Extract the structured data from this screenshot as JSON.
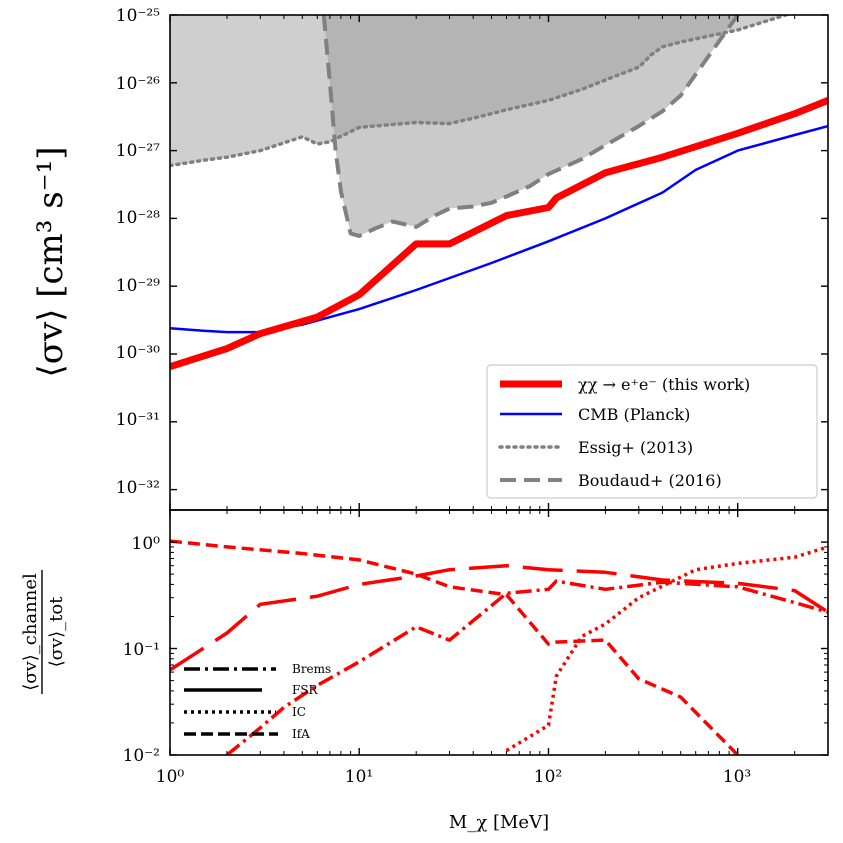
{
  "figure": {
    "xlabel": "M_χ [MeV]",
    "top_ylabel": "⟨σv⟩ [cm³ s⁻¹]",
    "bottom_ylabel_num": "⟨σv⟩_channel",
    "bottom_ylabel_den": "⟨σv⟩_tot",
    "x_ticks": [
      {
        "value": 1,
        "label": "10⁰"
      },
      {
        "value": 10,
        "label": "10¹"
      },
      {
        "value": 100,
        "label": "10²"
      },
      {
        "value": 1000,
        "label": "10³"
      }
    ],
    "top_y_ticks": [
      {
        "value": 1e-25,
        "label": "10⁻²⁵"
      },
      {
        "value": 1e-26,
        "label": "10⁻²⁶"
      },
      {
        "value": 1e-27,
        "label": "10⁻²⁷"
      },
      {
        "value": 1e-28,
        "label": "10⁻²⁸"
      },
      {
        "value": 1e-29,
        "label": "10⁻²⁹"
      },
      {
        "value": 1e-30,
        "label": "10⁻³⁰"
      },
      {
        "value": 1e-31,
        "label": "10⁻³¹"
      },
      {
        "value": 1e-32,
        "label": "10⁻³²"
      }
    ],
    "bottom_y_ticks": [
      {
        "value": 1,
        "label": "10⁰"
      },
      {
        "value": 0.1,
        "label": "10⁻¹"
      },
      {
        "value": 0.01,
        "label": "10⁻²"
      }
    ],
    "legend": [
      {
        "label": "χχ → e⁺e⁻ (this work)",
        "style": "thick-solid",
        "color": "#ff0000"
      },
      {
        "label": "CMB (Planck)",
        "style": "solid",
        "color": "#0000ff"
      },
      {
        "label": "Essig+ (2013)",
        "style": "dotted",
        "color": "#808080"
      },
      {
        "label": "Boudaud+ (2016)",
        "style": "dashed",
        "color": "#808080"
      }
    ],
    "inset_legend": [
      {
        "label": "Brems",
        "style": "dashdot"
      },
      {
        "label": "FSR",
        "style": "solid"
      },
      {
        "label": "IC",
        "style": "dotted"
      },
      {
        "label": "IfA",
        "style": "dashed"
      }
    ]
  },
  "chart_data": [
    {
      "type": "line",
      "xscale": "log",
      "yscale": "log",
      "xlim": [
        1,
        3000
      ],
      "ylim": [
        5e-33,
        1e-25
      ],
      "xlabel": "M_χ [MeV]",
      "ylabel": "⟨σv⟩ [cm³ s⁻¹]",
      "legend_position": "lower-right",
      "series": [
        {
          "name": "χχ → e⁺e⁻ (this work)",
          "color": "#ff0000",
          "x": [
            1,
            2,
            3,
            6,
            10,
            20,
            30,
            60,
            100,
            110,
            200,
            400,
            1000,
            2000,
            3000
          ],
          "y": [
            6.5e-31,
            1.2e-30,
            2e-30,
            3.5e-30,
            7.5e-30,
            4.2e-29,
            4.2e-29,
            1.1e-28,
            1.45e-28,
            2e-28,
            4.7e-28,
            8e-28,
            1.8e-27,
            3.5e-27,
            5.5e-27
          ]
        },
        {
          "name": "CMB (Planck)",
          "color": "#0000ff",
          "x": [
            1,
            1.5,
            2,
            3,
            5,
            10,
            20,
            50,
            100,
            200,
            400,
            600,
            1000,
            2000,
            3000
          ],
          "y": [
            2.4e-30,
            2.2e-30,
            2.1e-30,
            2.1e-30,
            2.7e-30,
            4.6e-30,
            8.8e-30,
            2.2e-29,
            4.6e-29,
            1e-28,
            2.4e-28,
            5.2e-28,
            1e-27,
            1.7e-27,
            2.3e-27
          ]
        },
        {
          "name": "Essig+ (2013)",
          "color": "#808080",
          "x": [
            1,
            1.5,
            2,
            3,
            4,
            5,
            6,
            7,
            10,
            20,
            30,
            40,
            50,
            60,
            100,
            150,
            200,
            300,
            350,
            400,
            500,
            1000,
            2000,
            3000
          ],
          "y": [
            6e-28,
            7.2e-28,
            8e-28,
            1e-27,
            1.3e-27,
            1.6e-27,
            1.25e-27,
            1.35e-27,
            2.2e-27,
            2.6e-27,
            2.5e-27,
            3e-27,
            3.5e-27,
            4e-27,
            5.5e-27,
            8e-27,
            1.1e-26,
            1.7e-26,
            2.6e-26,
            3.4e-26,
            4e-26,
            6e-26,
            1.1e-25,
            1.5e-25
          ]
        },
        {
          "name": "Boudaud+ (2016)",
          "color": "#808080",
          "x": [
            6.5,
            7,
            7.5,
            8,
            9,
            10,
            12,
            15,
            20,
            25,
            30,
            40,
            50,
            60,
            80,
            100,
            150,
            200,
            300,
            400,
            500,
            1000
          ],
          "y": [
            1e-25,
            1e-26,
            1e-27,
            2.5e-28,
            6e-29,
            5.5e-29,
            7e-29,
            9e-29,
            7.5e-29,
            1.1e-28,
            1.4e-28,
            1.5e-28,
            1.7e-28,
            2.1e-28,
            3e-28,
            4.5e-28,
            7.5e-28,
            1.2e-27,
            2.3e-27,
            3.8e-27,
            6.5e-27,
            1e-25
          ]
        }
      ]
    },
    {
      "type": "line",
      "xscale": "log",
      "yscale": "log",
      "xlim": [
        1,
        3000
      ],
      "ylim": [
        0.01,
        2
      ],
      "xlabel": "M_χ [MeV]",
      "ylabel": "⟨σv⟩_channel / ⟨σv⟩_tot",
      "legend_position": "lower-left",
      "series": [
        {
          "name": "Brems",
          "color": "#ff0000",
          "x": [
            2,
            3,
            4,
            6,
            10,
            20,
            30,
            60,
            100,
            110,
            200,
            400,
            1000,
            2000,
            3000
          ],
          "y": [
            0.01,
            0.018,
            0.028,
            0.045,
            0.075,
            0.16,
            0.12,
            0.33,
            0.36,
            0.43,
            0.36,
            0.42,
            0.38,
            0.27,
            0.22
          ]
        },
        {
          "name": "FSR",
          "color": "#ff0000",
          "x": [
            1,
            2,
            3,
            6,
            10,
            20,
            30,
            60,
            100,
            200,
            400,
            1000,
            2000,
            3000
          ],
          "y": [
            0.063,
            0.14,
            0.26,
            0.31,
            0.4,
            0.48,
            0.55,
            0.6,
            0.55,
            0.52,
            0.44,
            0.41,
            0.35,
            0.22
          ]
        },
        {
          "name": "IC",
          "color": "#ff0000",
          "x": [
            60,
            90,
            100,
            110,
            150,
            200,
            300,
            600,
            1000,
            2000,
            3000
          ],
          "y": [
            0.011,
            0.017,
            0.019,
            0.055,
            0.13,
            0.17,
            0.3,
            0.55,
            0.63,
            0.72,
            0.9
          ]
        },
        {
          "name": "IfA",
          "color": "#ff0000",
          "x": [
            1,
            2,
            5,
            10,
            20,
            30,
            60,
            100,
            110,
            200,
            300,
            500,
            1000
          ],
          "y": [
            1.02,
            0.9,
            0.78,
            0.68,
            0.5,
            0.38,
            0.32,
            0.11,
            0.115,
            0.12,
            0.052,
            0.035,
            0.01
          ]
        }
      ]
    }
  ]
}
